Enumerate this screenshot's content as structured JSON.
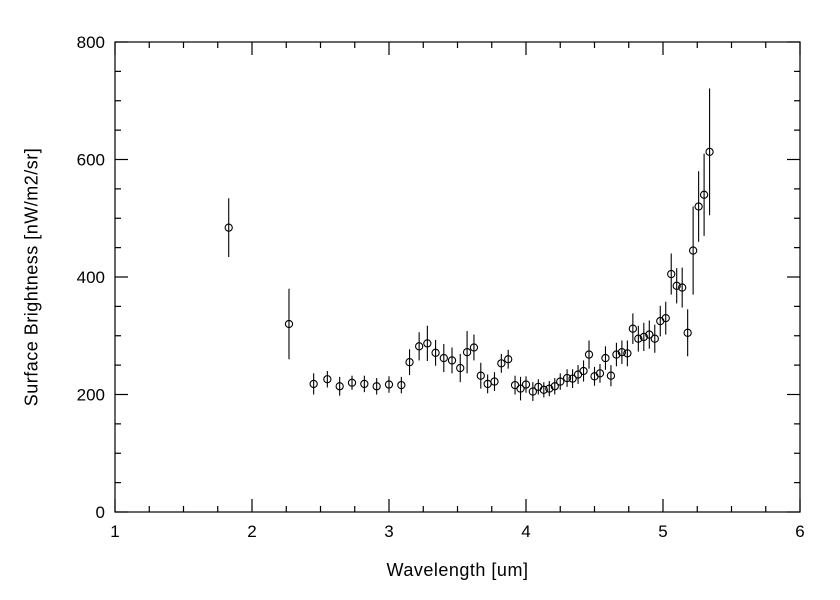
{
  "page": {
    "background": "#ffffff",
    "foreground": "#000000"
  },
  "chart_data": {
    "type": "scatter",
    "title": "",
    "xlabel": "Wavelength [um]",
    "ylabel": "Surface Brightness [nW/m2/sr]",
    "xlim": [
      1,
      6
    ],
    "ylim": [
      0,
      800
    ],
    "xticks": [
      1,
      2,
      3,
      4,
      5,
      6
    ],
    "yticks": [
      0,
      200,
      400,
      600,
      800
    ],
    "x_minor_step": 0.25,
    "y_minor_step": 50,
    "grid": false,
    "legend": "none",
    "marker": "open-circle",
    "color": "#000000",
    "error_bars": true,
    "x": [
      1.83,
      2.27,
      2.45,
      2.55,
      2.64,
      2.73,
      2.82,
      2.91,
      3.0,
      3.09,
      3.15,
      3.22,
      3.28,
      3.34,
      3.4,
      3.46,
      3.52,
      3.57,
      3.62,
      3.67,
      3.72,
      3.77,
      3.82,
      3.87,
      3.92,
      3.96,
      4.0,
      4.05,
      4.09,
      4.13,
      4.17,
      4.21,
      4.25,
      4.3,
      4.34,
      4.38,
      4.42,
      4.46,
      4.5,
      4.54,
      4.58,
      4.62,
      4.66,
      4.7,
      4.74,
      4.78,
      4.82,
      4.86,
      4.9,
      4.94,
      4.98,
      5.02,
      5.06,
      5.1,
      5.14,
      5.18,
      5.22,
      5.26,
      5.3,
      5.34
    ],
    "y": [
      484,
      320,
      218,
      226,
      214,
      220,
      218,
      214,
      217,
      216,
      255,
      282,
      287,
      271,
      262,
      258,
      245,
      272,
      280,
      232,
      218,
      222,
      253,
      260,
      216,
      210,
      217,
      205,
      213,
      208,
      210,
      214,
      222,
      228,
      227,
      234,
      240,
      268,
      231,
      236,
      262,
      232,
      268,
      272,
      270,
      312,
      295,
      298,
      302,
      295,
      325,
      330,
      405,
      385,
      382,
      305,
      445,
      520,
      540,
      613
    ],
    "yerr": [
      50,
      60,
      18,
      14,
      16,
      12,
      14,
      14,
      14,
      14,
      22,
      24,
      30,
      22,
      24,
      22,
      24,
      36,
      22,
      22,
      16,
      16,
      16,
      16,
      16,
      20,
      14,
      16,
      13,
      13,
      13,
      14,
      14,
      15,
      16,
      16,
      18,
      24,
      16,
      16,
      20,
      18,
      20,
      20,
      22,
      26,
      22,
      24,
      24,
      24,
      26,
      28,
      35,
      30,
      34,
      40,
      75,
      60,
      70,
      108
    ]
  }
}
